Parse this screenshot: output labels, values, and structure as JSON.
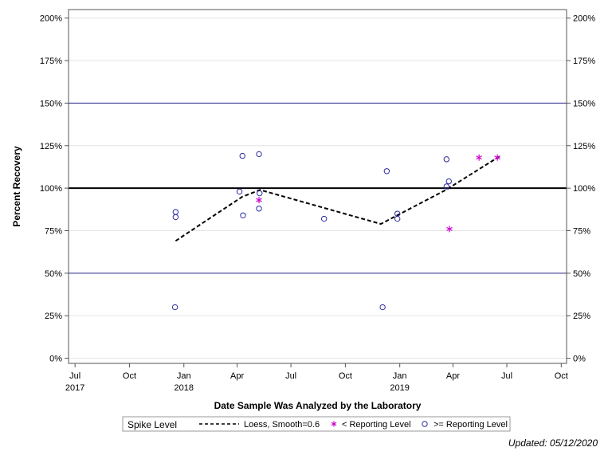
{
  "chart_data": {
    "type": "scatter",
    "xlabel": "Date Sample Was Analyzed by the Laboratory",
    "ylabel": "Percent Recovery",
    "xlim": [
      "2017-06-20",
      "2019-10-10"
    ],
    "ylim": [
      -3,
      205
    ],
    "x_ticks": [
      {
        "date": "2017-07-01",
        "label": "Jul",
        "year": "2017"
      },
      {
        "date": "2017-10-01",
        "label": "Oct",
        "year": ""
      },
      {
        "date": "2018-01-01",
        "label": "Jan",
        "year": "2018"
      },
      {
        "date": "2018-04-01",
        "label": "Apr",
        "year": ""
      },
      {
        "date": "2018-07-01",
        "label": "Jul",
        "year": ""
      },
      {
        "date": "2018-10-01",
        "label": "Oct",
        "year": ""
      },
      {
        "date": "2019-01-01",
        "label": "Jan",
        "year": "2019"
      },
      {
        "date": "2019-04-01",
        "label": "Apr",
        "year": ""
      },
      {
        "date": "2019-07-01",
        "label": "Jul",
        "year": ""
      },
      {
        "date": "2019-10-01",
        "label": "Oct",
        "year": ""
      }
    ],
    "y_ticks": [
      {
        "value": 0,
        "label": "0%"
      },
      {
        "value": 25,
        "label": "25%"
      },
      {
        "value": 50,
        "label": "50%"
      },
      {
        "value": 75,
        "label": "75%"
      },
      {
        "value": 100,
        "label": "100%"
      },
      {
        "value": 125,
        "label": "125%"
      },
      {
        "value": 150,
        "label": "150%"
      },
      {
        "value": 175,
        "label": "175%"
      },
      {
        "value": 200,
        "label": "200%"
      }
    ],
    "reference_lines": [
      {
        "y": 150,
        "color": "#2a2a8a",
        "width": 1
      },
      {
        "y": 100,
        "color": "#000000",
        "width": 2
      },
      {
        "y": 50,
        "color": "#2a2a8a",
        "width": 1
      }
    ],
    "grid": true,
    "legend": {
      "position": "bottom",
      "title": "Spike Level",
      "entries": [
        {
          "label": "Loess, Smooth=0.6",
          "symbol": "dashed-line"
        },
        {
          "label": "< Reporting Level",
          "symbol": "star"
        },
        {
          "label": ">= Reporting Level",
          "symbol": "circle"
        }
      ]
    },
    "series": [
      {
        "name": "Loess, Smooth=0.6",
        "style": "dashed-line",
        "color": "#000000",
        "points": [
          {
            "x": "2017-12-18",
            "y": 69
          },
          {
            "x": "2018-04-10",
            "y": 95
          },
          {
            "x": "2018-05-10",
            "y": 99
          },
          {
            "x": "2018-11-30",
            "y": 79
          },
          {
            "x": "2019-03-20",
            "y": 99
          },
          {
            "x": "2019-06-20",
            "y": 119
          }
        ]
      },
      {
        "name": "< Reporting Level",
        "style": "star",
        "color": "#cc00cc",
        "points": [
          {
            "x": "2018-05-08",
            "y": 93
          },
          {
            "x": "2019-03-26",
            "y": 76
          },
          {
            "x": "2019-05-15",
            "y": 118
          },
          {
            "x": "2019-06-15",
            "y": 118
          }
        ]
      },
      {
        "name": ">= Reporting Level",
        "style": "circle",
        "color": "#2a2aa0",
        "points": [
          {
            "x": "2017-12-18",
            "y": 86
          },
          {
            "x": "2017-12-18",
            "y": 83
          },
          {
            "x": "2017-12-17",
            "y": 30
          },
          {
            "x": "2018-04-05",
            "y": 98
          },
          {
            "x": "2018-04-10",
            "y": 119
          },
          {
            "x": "2018-04-11",
            "y": 84
          },
          {
            "x": "2018-05-08",
            "y": 120
          },
          {
            "x": "2018-05-09",
            "y": 97
          },
          {
            "x": "2018-05-08",
            "y": 88
          },
          {
            "x": "2018-08-26",
            "y": 82
          },
          {
            "x": "2018-12-03",
            "y": 30
          },
          {
            "x": "2018-12-10",
            "y": 110
          },
          {
            "x": "2018-12-28",
            "y": 85
          },
          {
            "x": "2018-12-28",
            "y": 82
          },
          {
            "x": "2019-03-21",
            "y": 117
          },
          {
            "x": "2019-03-21",
            "y": 101
          },
          {
            "x": "2019-03-25",
            "y": 104
          }
        ]
      }
    ]
  },
  "footer": {
    "updated": "Updated: 05/12/2020"
  }
}
